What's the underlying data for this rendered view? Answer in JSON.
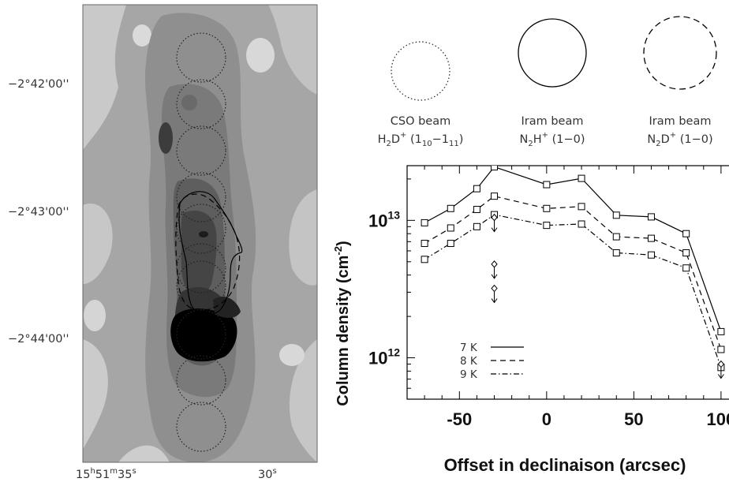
{
  "map": {
    "ra_labels": [
      "15h51m35s",
      "30s"
    ],
    "ra_first": {
      "h": "15",
      "h_sup": "h",
      "m": "51",
      "m_sup": "m",
      "s": "35",
      "s_sup": "s"
    },
    "ra_second": {
      "s": "30",
      "s_sup": "s"
    },
    "dec_labels": [
      "−2°42'00''",
      "−2°43'00''",
      "−2°44'00''"
    ],
    "beam_positions_count": 10
  },
  "beams": [
    {
      "name": "CSO beam",
      "line": "H2D+ (1_10-1_11)",
      "name_text": "CSO beam",
      "species": "H",
      "species_sub": "2",
      "species_2": "D",
      "species_sup": "+",
      "transition": "(1",
      "t_sub1": "10",
      "t_mid": "−1",
      "t_sub2": "11",
      "t_end": ")",
      "style": "dotted"
    },
    {
      "name": "Iram beam",
      "line": "N2H+ (1-0)",
      "name_text": "Iram beam",
      "species": "N",
      "species_sub": "2",
      "species_2": "H",
      "species_sup": "+",
      "transition": "(1−0)",
      "style": "solid"
    },
    {
      "name": "Iram beam",
      "line": "N2D+ (1-0)",
      "name_text": "Iram beam",
      "species": "N",
      "species_sub": "2",
      "species_2": "D",
      "species_sup": "+",
      "transition": "(1−0)",
      "style": "dashed"
    }
  ],
  "chart_data": {
    "type": "line",
    "xlabel": "Offset in declinaison (arcsec)",
    "ylabel": "Column density (cm-2)",
    "ylabel_text": "Column density (cm",
    "ylabel_sup": "-2",
    "ylabel_end": ")",
    "xlim": [
      -80,
      110
    ],
    "ylim": [
      500000000000.0,
      25000000000000.0
    ],
    "yscale": "log",
    "xticks": [
      -50,
      0,
      50,
      100
    ],
    "yticks": [
      {
        "value": 1000000000000.0,
        "base": "10",
        "exp": "12"
      },
      {
        "value": 10000000000000.0,
        "base": "10",
        "exp": "13"
      }
    ],
    "x": [
      -70,
      -55,
      -40,
      -30,
      0,
      20,
      40,
      60,
      80,
      100
    ],
    "series": [
      {
        "name": "7 K",
        "style": "solid",
        "values": [
          9600000000000.0,
          12200000000000.0,
          17000000000000.0,
          24500000000000.0,
          18200000000000.0,
          20200000000000.0,
          10900000000000.0,
          10600000000000.0,
          8000000000000.0,
          1550000000000.0
        ]
      },
      {
        "name": "8 K",
        "style": "dashed",
        "values": [
          6800000000000.0,
          8800000000000.0,
          12000000000000.0,
          15000000000000.0,
          12200000000000.0,
          12600000000000.0,
          7600000000000.0,
          7400000000000.0,
          5800000000000.0,
          1150000000000.0
        ]
      },
      {
        "name": "9 K",
        "style": "dashdot",
        "values": [
          5200000000000.0,
          6800000000000.0,
          9000000000000.0,
          11000000000000.0,
          9200000000000.0,
          9400000000000.0,
          5800000000000.0,
          5600000000000.0,
          4500000000000.0,
          850000000000.0
        ]
      }
    ],
    "upper_limits": [
      {
        "x": -30,
        "y": 10500000000000.0
      },
      {
        "x": -30,
        "y": 4800000000000.0
      },
      {
        "x": -30,
        "y": 3200000000000.0
      },
      {
        "x": 100,
        "y": 900000000000.0
      }
    ]
  }
}
